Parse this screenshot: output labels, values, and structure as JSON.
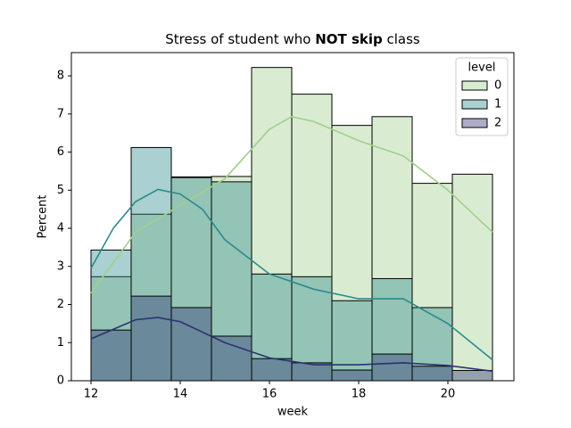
{
  "chart_data": {
    "type": "histogram",
    "title": {
      "parts": [
        "Stress of student who ",
        "NOT skip",
        "  class"
      ],
      "bold": [
        false,
        true,
        false
      ]
    },
    "xlabel": "week",
    "ylabel": "Percent",
    "bins": [
      12,
      12.9,
      13.8,
      14.7,
      15.6,
      16.5,
      17.4,
      18.3,
      19.2,
      20.1,
      21
    ],
    "xlim": [
      11.56,
      21.48
    ],
    "ylim": [
      0,
      8.61
    ],
    "xticks": [
      12,
      14,
      16,
      18,
      20
    ],
    "yticks": [
      0,
      1,
      2,
      3,
      4,
      5,
      6,
      7,
      8
    ],
    "legend_title": "level",
    "legend": "upper right",
    "series": [
      {
        "name": "0",
        "color": "#a1cf8c",
        "values": [
          2.73,
          4.37,
          5.35,
          5.36,
          8.22,
          7.52,
          6.7,
          6.93,
          5.18,
          5.42
        ],
        "kde": {
          "x": [
            12,
            13,
            14,
            15,
            16,
            16.5,
            17,
            18,
            19,
            20,
            21
          ],
          "values": [
            2.3,
            3.9,
            4.6,
            5.3,
            6.6,
            6.93,
            6.8,
            6.3,
            5.9,
            5.0,
            3.9
          ]
        }
      },
      {
        "name": "1",
        "color": "#2a8a8c",
        "values": [
          3.43,
          6.12,
          5.33,
          5.22,
          2.8,
          2.73,
          2.1,
          2.68,
          1.92,
          0
        ],
        "kde": {
          "x": [
            12,
            12.5,
            13,
            13.5,
            14,
            14.5,
            15,
            16,
            17,
            18,
            19,
            20,
            21
          ],
          "values": [
            2.95,
            4.0,
            4.7,
            5.02,
            4.9,
            4.5,
            3.7,
            2.8,
            2.4,
            2.15,
            2.15,
            1.5,
            0.55
          ]
        }
      },
      {
        "name": "2",
        "color": "#2c3172",
        "values": [
          1.33,
          2.22,
          1.92,
          1.17,
          0.58,
          0.47,
          0.28,
          0.7,
          0.38,
          0.27
        ],
        "kde": {
          "x": [
            12,
            13,
            13.5,
            14,
            15,
            16,
            17,
            18,
            19,
            20,
            21
          ],
          "values": [
            1.1,
            1.6,
            1.66,
            1.55,
            1.0,
            0.6,
            0.42,
            0.42,
            0.47,
            0.4,
            0.25
          ]
        }
      }
    ]
  }
}
